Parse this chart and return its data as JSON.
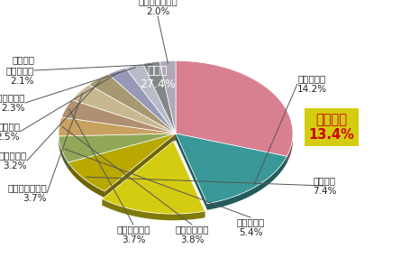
{
  "slices": [
    {
      "label": "その他",
      "pct": 27.4,
      "color": "#d98090"
    },
    {
      "label": "電気冷蔵庫",
      "pct": 14.2,
      "color": "#3a9898"
    },
    {
      "label": "照明器具",
      "pct": 13.4,
      "color": "#d4cc10"
    },
    {
      "label": "エアコン",
      "pct": 7.4,
      "color": "#b8a800"
    },
    {
      "label": "電気温水器",
      "pct": 5.4,
      "color": "#90a858"
    },
    {
      "label": "エコキュート",
      "pct": 3.8,
      "color": "#c8a060"
    },
    {
      "label": "温水洗浄便座",
      "pct": 3.7,
      "color": "#b09070"
    },
    {
      "label": "食器洗い乾燥機",
      "pct": 3.7,
      "color": "#c8b890"
    },
    {
      "label": "電気ポット",
      "pct": 3.2,
      "color": "#a89870"
    },
    {
      "label": "パソコン",
      "pct": 2.5,
      "color": "#9898b8"
    },
    {
      "label": "ジャー炊飯器",
      "pct": 2.3,
      "color": "#b8bcc8"
    },
    {
      "label": "洗濯機・\n洗濯乾燥機",
      "pct": 2.1,
      "color": "#808888"
    },
    {
      "label": "電気カーペット",
      "pct": 2.0,
      "color": "#b0a8b8"
    }
  ],
  "explode_label": "照明器具",
  "explode_dist": 0.08,
  "background_color": "#ffffff",
  "start_angle": 90,
  "ellipse_ratio": 0.62,
  "shadow_drop": 0.055
}
